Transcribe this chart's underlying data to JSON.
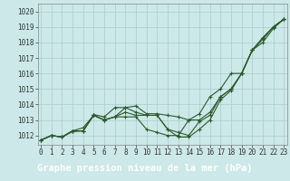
{
  "title": "Graphe pression niveau de la mer (hPa)",
  "bg_color": "#cce8e8",
  "grid_color": "#aacccc",
  "line_color": "#2d5a2d",
  "title_bg": "#2d5a2d",
  "title_fg": "#ffffff",
  "xlim": [
    -0.3,
    23.3
  ],
  "ylim": [
    1011.4,
    1020.5
  ],
  "yticks": [
    1012,
    1013,
    1014,
    1015,
    1016,
    1017,
    1018,
    1019,
    1020
  ],
  "xticks": [
    0,
    1,
    2,
    3,
    4,
    5,
    6,
    7,
    8,
    9,
    10,
    11,
    12,
    13,
    14,
    15,
    16,
    17,
    18,
    19,
    20,
    21,
    22,
    23
  ],
  "series": [
    [
      1011.7,
      1012.0,
      1011.9,
      1012.3,
      1012.5,
      1013.3,
      1013.0,
      1013.2,
      1013.5,
      1013.3,
      1013.3,
      1013.3,
      1012.4,
      1012.2,
      1012.0,
      1012.9,
      1013.3,
      1014.5,
      1015.0,
      1016.0,
      1017.5,
      1018.2,
      1019.0,
      1019.5
    ],
    [
      1011.7,
      1012.0,
      1011.9,
      1012.3,
      1012.3,
      1013.3,
      1013.0,
      1013.2,
      1013.8,
      1013.5,
      1013.3,
      1013.3,
      1012.4,
      1011.9,
      1011.9,
      1012.4,
      1013.0,
      1014.3,
      1014.9,
      1016.0,
      1017.5,
      1018.0,
      1018.9,
      1019.5
    ],
    [
      1011.7,
      1012.0,
      1011.9,
      1012.25,
      1012.3,
      1013.3,
      1013.0,
      1013.2,
      1013.2,
      1013.2,
      1012.4,
      1012.2,
      1012.0,
      1012.0,
      1013.0,
      1013.4,
      1014.5,
      1015.0,
      1016.0,
      1016.0,
      1017.5,
      1018.3,
      1019.0,
      1019.5
    ],
    [
      1011.7,
      1012.0,
      1011.9,
      1012.3,
      1012.3,
      1013.35,
      1013.2,
      1013.8,
      1013.8,
      1013.9,
      1013.4,
      1013.4,
      1013.3,
      1013.2,
      1013.0,
      1013.0,
      1013.5,
      1014.5,
      1015.0,
      1016.0,
      1017.5,
      1018.3,
      1019.0,
      1019.5
    ]
  ],
  "tick_fontsize": 5.5,
  "title_fontsize": 7.5,
  "marker_size": 3,
  "line_width": 0.8
}
